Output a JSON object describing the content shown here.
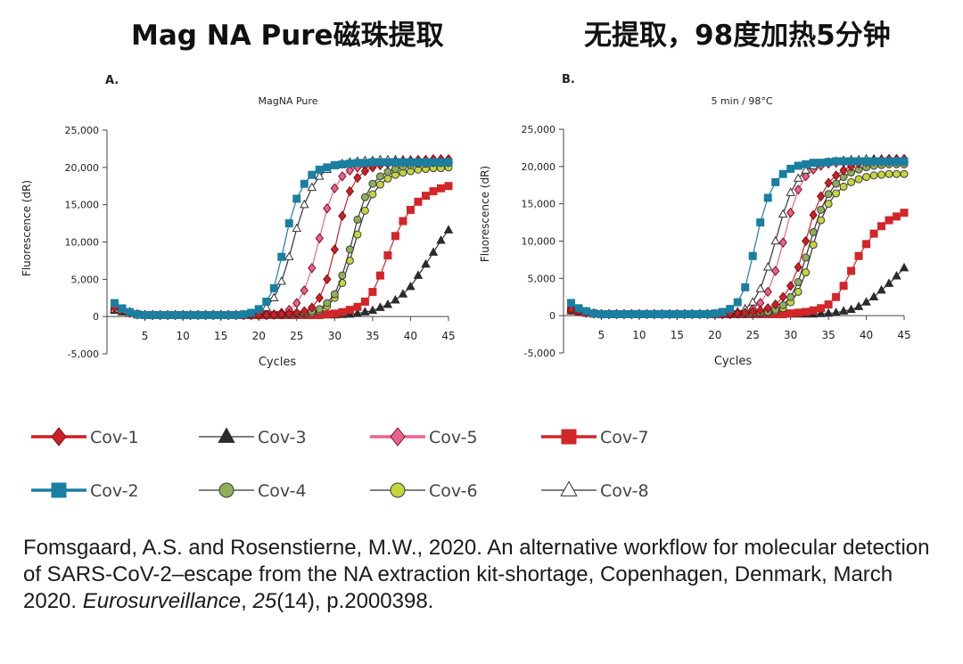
{
  "headings": {
    "left": "Mag NA Pure磁珠提取",
    "right": "无提取，98度加热5分钟"
  },
  "citation": {
    "part1": "Fomsgaard, A.S. and Rosenstierne, M.W., 2020. An alternative workflow for molecular detection of SARS-CoV-2–escape from the NA extraction kit-shortage, Copenhagen, Denmark, March 2020. ",
    "journal": "Eurosurveillance",
    "sep": ", ",
    "volume": "25",
    "issue": "(14),",
    "pages": " p.2000398."
  },
  "series_styles": {
    "Cov-1": {
      "color": "#cc2027",
      "marker": "diamond",
      "fill": "#cc2027"
    },
    "Cov-2": {
      "color": "#1a7fa0",
      "marker": "square",
      "fill": "#1a7fa0"
    },
    "Cov-3": {
      "color": "#2b2b2b",
      "marker": "triangle",
      "fill": "#2b2b2b"
    },
    "Cov-4": {
      "color": "#4a4a4a",
      "marker": "circle",
      "fill": "#8fae5a"
    },
    "Cov-5": {
      "color": "#e8638f",
      "marker": "diamond",
      "fill": "#e8638f"
    },
    "Cov-6": {
      "color": "#4a4a4a",
      "marker": "circle",
      "fill": "#c5d63a"
    },
    "Cov-7": {
      "color": "#d2262b",
      "marker": "square",
      "fill": "#d2262b"
    },
    "Cov-8": {
      "color": "#333333",
      "marker": "triangle-open",
      "fill": "#ffffff"
    }
  },
  "legend": [
    {
      "name": "Cov-1"
    },
    {
      "name": "Cov-3"
    },
    {
      "name": "Cov-5"
    },
    {
      "name": "Cov-7"
    },
    {
      "name": "Cov-2"
    },
    {
      "name": "Cov-4"
    },
    {
      "name": "Cov-6"
    },
    {
      "name": "Cov-8"
    }
  ],
  "chart_data": [
    {
      "type": "line",
      "panel": "A.",
      "title": "MagNA Pure",
      "xlabel": "Cycles",
      "ylabel": "Fluorescence (dR)",
      "xlim": [
        0,
        45
      ],
      "ylim": [
        -5000,
        25000
      ],
      "xticks": [
        5,
        10,
        15,
        20,
        25,
        30,
        35,
        40,
        45
      ],
      "yticks": [
        -5000,
        0,
        5000,
        10000,
        15000,
        20000,
        25000
      ],
      "ytick_labels": [
        "-5,000",
        "0",
        "5,000",
        "10,000",
        "15,000",
        "20,000",
        "25,000"
      ],
      "x": [
        1,
        2,
        3,
        4,
        5,
        6,
        7,
        8,
        9,
        10,
        11,
        12,
        13,
        14,
        15,
        16,
        17,
        18,
        19,
        20,
        21,
        22,
        23,
        24,
        25,
        26,
        27,
        28,
        29,
        30,
        31,
        32,
        33,
        34,
        35,
        36,
        37,
        38,
        39,
        40,
        41,
        42,
        43,
        44,
        45
      ],
      "series": [
        {
          "name": "Cov-1",
          "values": [
            1200,
            900,
            600,
            300,
            200,
            200,
            200,
            200,
            200,
            200,
            200,
            200,
            200,
            200,
            200,
            200,
            200,
            200,
            200,
            200,
            200,
            250,
            300,
            400,
            500,
            700,
            1200,
            2500,
            5000,
            9000,
            13500,
            16800,
            18600,
            19500,
            20000,
            20300,
            20500,
            20700,
            20800,
            20900,
            21000,
            21000,
            21100,
            21100,
            21100
          ]
        },
        {
          "name": "Cov-2",
          "values": [
            1800,
            1100,
            600,
            300,
            200,
            200,
            200,
            200,
            200,
            200,
            200,
            200,
            200,
            200,
            200,
            200,
            200,
            300,
            500,
            1000,
            2000,
            3800,
            8000,
            12500,
            15800,
            17800,
            19000,
            19700,
            20000,
            20300,
            20400,
            20500,
            20600,
            20600,
            20700,
            20700,
            20700,
            20700,
            20700,
            20700,
            20700,
            20700,
            20700,
            20700,
            20700
          ]
        },
        {
          "name": "Cov-3",
          "values": [
            800,
            600,
            400,
            200,
            200,
            200,
            200,
            200,
            200,
            200,
            200,
            200,
            200,
            200,
            200,
            200,
            200,
            200,
            200,
            200,
            200,
            200,
            200,
            200,
            200,
            200,
            200,
            200,
            200,
            200,
            250,
            300,
            400,
            600,
            800,
            1200,
            1600,
            2200,
            3000,
            4000,
            5500,
            7000,
            8600,
            10200,
            11600
          ]
        },
        {
          "name": "Cov-4",
          "values": [
            1000,
            800,
            500,
            300,
            200,
            200,
            200,
            200,
            200,
            200,
            200,
            200,
            200,
            200,
            200,
            200,
            200,
            200,
            200,
            200,
            200,
            200,
            250,
            300,
            400,
            500,
            700,
            1000,
            1800,
            3000,
            5500,
            9000,
            13000,
            16000,
            17800,
            18800,
            19400,
            19800,
            20100,
            20300,
            20500,
            20500,
            20600,
            20600,
            20600
          ]
        },
        {
          "name": "Cov-5",
          "values": [
            1000,
            800,
            500,
            300,
            200,
            200,
            200,
            200,
            200,
            200,
            200,
            200,
            200,
            200,
            200,
            200,
            200,
            200,
            200,
            200,
            200,
            300,
            500,
            900,
            1800,
            3500,
            6500,
            10500,
            14500,
            17200,
            18800,
            19600,
            20000,
            20200,
            20400,
            20500,
            20600,
            20700,
            20700,
            20700,
            20700,
            20800,
            20800,
            20800,
            20800
          ]
        },
        {
          "name": "Cov-6",
          "values": [
            900,
            700,
            500,
            300,
            200,
            200,
            200,
            200,
            200,
            200,
            200,
            200,
            200,
            200,
            200,
            200,
            200,
            200,
            200,
            200,
            200,
            200,
            200,
            250,
            300,
            400,
            500,
            800,
            1400,
            2500,
            4500,
            7500,
            11000,
            14200,
            16400,
            17700,
            18500,
            19000,
            19300,
            19500,
            19700,
            19800,
            19900,
            19900,
            20000
          ]
        },
        {
          "name": "Cov-7",
          "values": [
            1100,
            800,
            500,
            300,
            200,
            200,
            200,
            200,
            200,
            200,
            200,
            200,
            200,
            200,
            200,
            200,
            200,
            200,
            200,
            200,
            200,
            200,
            200,
            200,
            200,
            200,
            200,
            200,
            300,
            400,
            600,
            900,
            1300,
            2000,
            3300,
            5500,
            8200,
            10800,
            12800,
            14300,
            15400,
            16200,
            16800,
            17200,
            17500
          ]
        },
        {
          "name": "Cov-8",
          "values": [
            1000,
            800,
            500,
            300,
            200,
            200,
            200,
            200,
            200,
            200,
            200,
            200,
            200,
            200,
            200,
            200,
            200,
            200,
            300,
            600,
            1200,
            2500,
            4700,
            8000,
            11800,
            15000,
            17300,
            18800,
            19700,
            20200,
            20500,
            20700,
            20800,
            20900,
            20900,
            21000,
            21000,
            21000,
            21000,
            21000,
            21000,
            21000,
            21000,
            21000,
            21000
          ]
        }
      ]
    },
    {
      "type": "line",
      "panel": "B.",
      "title": "5 min / 98°C",
      "xlabel": "Cycles",
      "ylabel": "Fluorescence (dR)",
      "xlim": [
        0,
        45
      ],
      "ylim": [
        -5000,
        25000
      ],
      "xticks": [
        5,
        10,
        15,
        20,
        25,
        30,
        35,
        40,
        45
      ],
      "yticks": [
        -5000,
        0,
        5000,
        10000,
        15000,
        20000,
        25000
      ],
      "ytick_labels": [
        "-5,000",
        "0",
        "5,000",
        "10,000",
        "15,000",
        "20,000",
        "25,000"
      ],
      "x": [
        1,
        2,
        3,
        4,
        5,
        6,
        7,
        8,
        9,
        10,
        11,
        12,
        13,
        14,
        15,
        16,
        17,
        18,
        19,
        20,
        21,
        22,
        23,
        24,
        25,
        26,
        27,
        28,
        29,
        30,
        31,
        32,
        33,
        34,
        35,
        36,
        37,
        38,
        39,
        40,
        41,
        42,
        43,
        44,
        45
      ],
      "series": [
        {
          "name": "Cov-1",
          "values": [
            800,
            600,
            400,
            300,
            200,
            200,
            200,
            200,
            200,
            200,
            200,
            200,
            200,
            200,
            200,
            200,
            200,
            200,
            200,
            200,
            200,
            250,
            300,
            400,
            500,
            700,
            1000,
            1500,
            2500,
            4000,
            6500,
            10000,
            13500,
            16000,
            17800,
            18800,
            19500,
            20000,
            20400,
            20600,
            20800,
            20900,
            21000,
            21000,
            21000
          ]
        },
        {
          "name": "Cov-2",
          "values": [
            1700,
            1000,
            600,
            300,
            200,
            200,
            200,
            200,
            200,
            200,
            200,
            200,
            200,
            200,
            200,
            200,
            200,
            200,
            200,
            300,
            500,
            900,
            1800,
            3800,
            8000,
            12500,
            15800,
            17900,
            19000,
            19700,
            20100,
            20300,
            20500,
            20500,
            20600,
            20700,
            20700,
            20700,
            20700,
            20700,
            20700,
            20700,
            20700,
            20700,
            20700
          ]
        },
        {
          "name": "Cov-3",
          "values": [
            600,
            500,
            300,
            200,
            200,
            200,
            200,
            200,
            200,
            200,
            200,
            200,
            200,
            200,
            200,
            200,
            200,
            200,
            200,
            200,
            200,
            200,
            200,
            200,
            200,
            200,
            200,
            200,
            200,
            200,
            200,
            200,
            200,
            250,
            300,
            400,
            600,
            800,
            1200,
            1800,
            2500,
            3400,
            4300,
            5300,
            6400
          ]
        },
        {
          "name": "Cov-4",
          "values": [
            800,
            600,
            400,
            300,
            200,
            200,
            200,
            200,
            200,
            200,
            200,
            200,
            200,
            200,
            200,
            200,
            200,
            200,
            200,
            200,
            200,
            200,
            200,
            250,
            300,
            400,
            500,
            800,
            1400,
            2500,
            4500,
            7800,
            11200,
            14200,
            16300,
            17700,
            18600,
            19200,
            19600,
            19900,
            20100,
            20200,
            20300,
            20300,
            20300
          ]
        },
        {
          "name": "Cov-5",
          "values": [
            900,
            700,
            500,
            300,
            200,
            200,
            200,
            200,
            200,
            200,
            200,
            200,
            200,
            200,
            200,
            200,
            200,
            200,
            200,
            200,
            200,
            200,
            300,
            500,
            900,
            1700,
            3200,
            6000,
            9800,
            13800,
            16900,
            18700,
            19600,
            20100,
            20400,
            20500,
            20600,
            20700,
            20700,
            20700,
            20700,
            20700,
            20700,
            20700,
            20700
          ]
        },
        {
          "name": "Cov-6",
          "values": [
            700,
            500,
            400,
            300,
            200,
            200,
            200,
            200,
            200,
            200,
            200,
            200,
            200,
            200,
            200,
            200,
            200,
            200,
            200,
            200,
            200,
            200,
            200,
            200,
            250,
            300,
            400,
            600,
            1000,
            1800,
            3200,
            5800,
            9500,
            12800,
            15000,
            16400,
            17300,
            17900,
            18300,
            18600,
            18800,
            18900,
            19000,
            19000,
            19000
          ]
        },
        {
          "name": "Cov-7",
          "values": [
            700,
            500,
            400,
            300,
            200,
            200,
            200,
            200,
            200,
            200,
            200,
            200,
            200,
            200,
            200,
            200,
            200,
            200,
            200,
            200,
            200,
            200,
            200,
            200,
            200,
            200,
            200,
            200,
            200,
            300,
            400,
            500,
            700,
            1000,
            1500,
            2500,
            4000,
            6000,
            8000,
            9600,
            11000,
            12000,
            12800,
            13300,
            13800
          ]
        },
        {
          "name": "Cov-8",
          "values": [
            900,
            700,
            500,
            300,
            200,
            200,
            200,
            200,
            200,
            200,
            200,
            200,
            200,
            200,
            200,
            200,
            200,
            200,
            200,
            200,
            200,
            300,
            500,
            900,
            1800,
            3600,
            6500,
            10000,
            13600,
            16500,
            18400,
            19500,
            20100,
            20400,
            20600,
            20700,
            20800,
            20900,
            20900,
            21000,
            21000,
            21000,
            21000,
            21000,
            21000
          ]
        }
      ]
    }
  ]
}
